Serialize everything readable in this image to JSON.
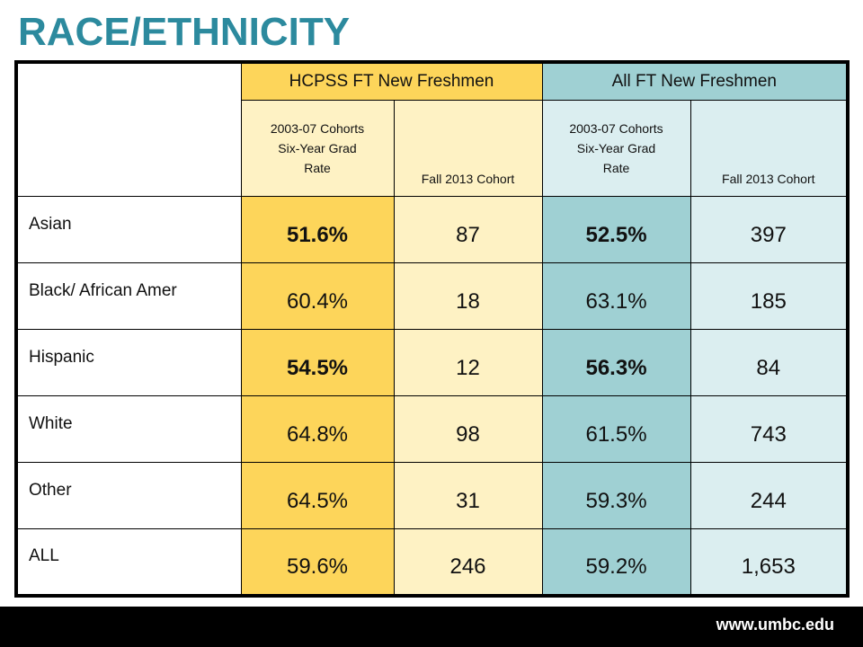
{
  "title": "RACE/ETHNICITY",
  "table": {
    "group_headers": [
      "HCPSS FT New Freshmen",
      "All FT New Freshmen"
    ],
    "sub_headers": {
      "hcpss_rate": [
        "2003-07 Cohorts",
        "Six-Year Grad",
        "Rate"
      ],
      "hcpss_cohort": "Fall 2013 Cohort",
      "all_rate": [
        "2003-07 Cohorts",
        "Six-Year Grad",
        "Rate"
      ],
      "all_cohort": "Fall 2013 Cohort"
    },
    "rows": [
      {
        "label": "Asian",
        "hcpss_rate": "51.6%",
        "hcpss_cohort": "87",
        "all_rate": "52.5%",
        "all_cohort": "397"
      },
      {
        "label": "Black/ African Amer",
        "hcpss_rate": "60.4%",
        "hcpss_cohort": "18",
        "all_rate": "63.1%",
        "all_cohort": "185"
      },
      {
        "label": "Hispanic",
        "hcpss_rate": "54.5%",
        "hcpss_cohort": "12",
        "all_rate": "56.3%",
        "all_cohort": "84"
      },
      {
        "label": "White",
        "hcpss_rate": "64.8%",
        "hcpss_cohort": "98",
        "all_rate": "61.5%",
        "all_cohort": "743"
      },
      {
        "label": "Other",
        "hcpss_rate": "64.5%",
        "hcpss_cohort": "31",
        "all_rate": "59.3%",
        "all_cohort": "244"
      },
      {
        "label": "ALL",
        "hcpss_rate": "59.6%",
        "hcpss_cohort": "246",
        "all_rate": "59.2%",
        "all_cohort": "1,653"
      }
    ]
  },
  "footer": {
    "url": "www.umbc.edu"
  },
  "colors": {
    "title": "#2c8a9e",
    "gold": "#fdd55a",
    "cream": "#fef2c4",
    "teal": "#9fd0d3",
    "light_teal": "#dbeef0"
  }
}
